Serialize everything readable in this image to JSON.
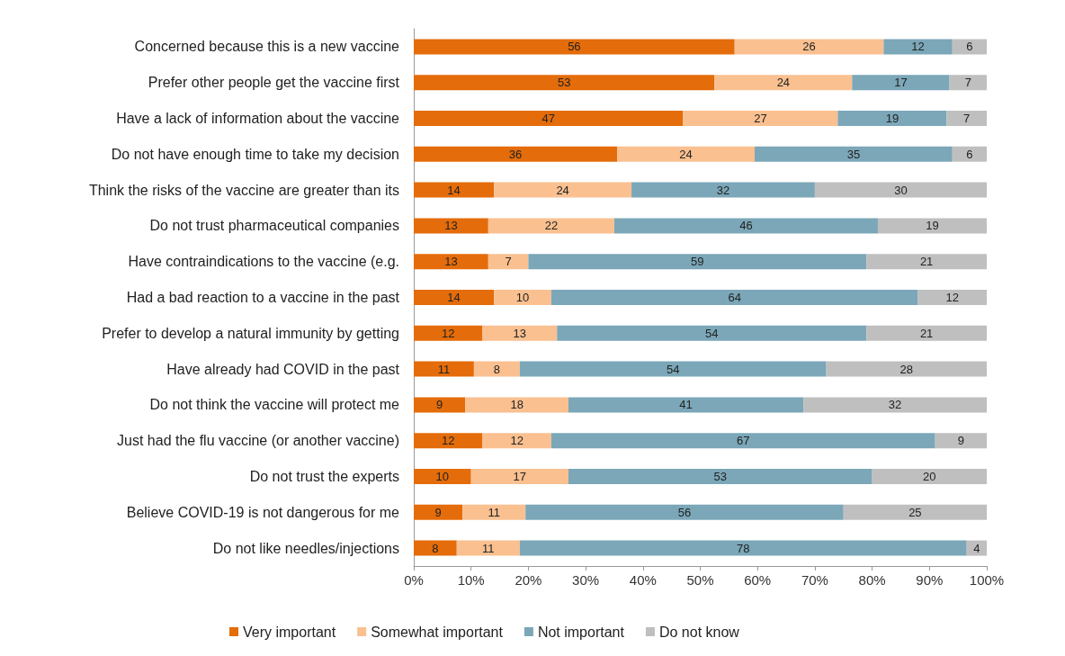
{
  "chart_data": {
    "type": "bar",
    "orientation": "horizontal",
    "stacked": true,
    "legend": "bottom",
    "grid": false,
    "categories": [
      "Concerned because this is a new vaccine",
      "Prefer other people get the vaccine first",
      "Have a lack of information about the vaccine",
      "Do not have enough time to take my decision",
      "Think the risks of the vaccine are greater than its",
      "Do not trust pharmaceutical companies",
      "Have contraindications to the vaccine (e.g.",
      "Had a bad reaction to a vaccine in the past",
      "Prefer to develop a natural immunity by getting",
      "Have already had COVID in the past",
      "Do not think the vaccine will protect me",
      "Just had the flu vaccine (or another vaccine)",
      "Do not trust the experts",
      "Believe COVID-19 is not dangerous for me",
      "Do not like needles/injections"
    ],
    "series": [
      {
        "name": "Very important",
        "color": "#e46c0a",
        "values": [
          56,
          52.5,
          47,
          35.5,
          14,
          13,
          13,
          14,
          12,
          10.5,
          9,
          12,
          10,
          8.5,
          7.5
        ],
        "value_labels": [
          "56",
          "53",
          "47",
          "36",
          "14",
          "13",
          "13",
          "14",
          "12",
          "11",
          "9",
          "12",
          "10",
          "9",
          "8"
        ]
      },
      {
        "name": "Somewhat important",
        "color": "#fac090",
        "values": [
          26,
          24,
          27,
          24,
          24,
          22,
          7,
          10,
          13,
          8,
          18,
          12,
          17,
          11,
          11
        ],
        "value_labels": [
          "26",
          "24",
          "27",
          "24",
          "24",
          "22",
          "7",
          "10",
          "13",
          "8",
          "18",
          "12",
          "17",
          "11",
          "11"
        ]
      },
      {
        "name": "Not important",
        "color": "#7ba7b8",
        "values": [
          12,
          17,
          19,
          34.5,
          32,
          46,
          59,
          64,
          54,
          53.5,
          41,
          67,
          53,
          55.5,
          78
        ],
        "value_labels": [
          "12",
          "17",
          "19",
          "35",
          "32",
          "46",
          "59",
          "64",
          "54",
          "54",
          "41",
          "67",
          "53",
          "56",
          "78"
        ]
      },
      {
        "name": "Do not know",
        "color": "#bfbfbf",
        "values": [
          6,
          6.5,
          7,
          6,
          30,
          19,
          21,
          12,
          21,
          28,
          32,
          9,
          20,
          25,
          3.5
        ],
        "value_labels": [
          "6",
          "7",
          "7",
          "6",
          "30",
          "19",
          "21",
          "12",
          "21",
          "28",
          "32",
          "9",
          "20",
          "25",
          "4"
        ]
      }
    ],
    "xlim": [
      0,
      100
    ],
    "xticks": [
      {
        "value": 0,
        "label": "0%"
      },
      {
        "value": 10,
        "label": "10%"
      },
      {
        "value": 20,
        "label": "20%"
      },
      {
        "value": 30,
        "label": "30%"
      },
      {
        "value": 40,
        "label": "40%"
      },
      {
        "value": 50,
        "label": "50%"
      },
      {
        "value": 60,
        "label": "60%"
      },
      {
        "value": 70,
        "label": "70%"
      },
      {
        "value": 80,
        "label": "80%"
      },
      {
        "value": 90,
        "label": "90%"
      },
      {
        "value": 100,
        "label": "100%"
      }
    ]
  }
}
